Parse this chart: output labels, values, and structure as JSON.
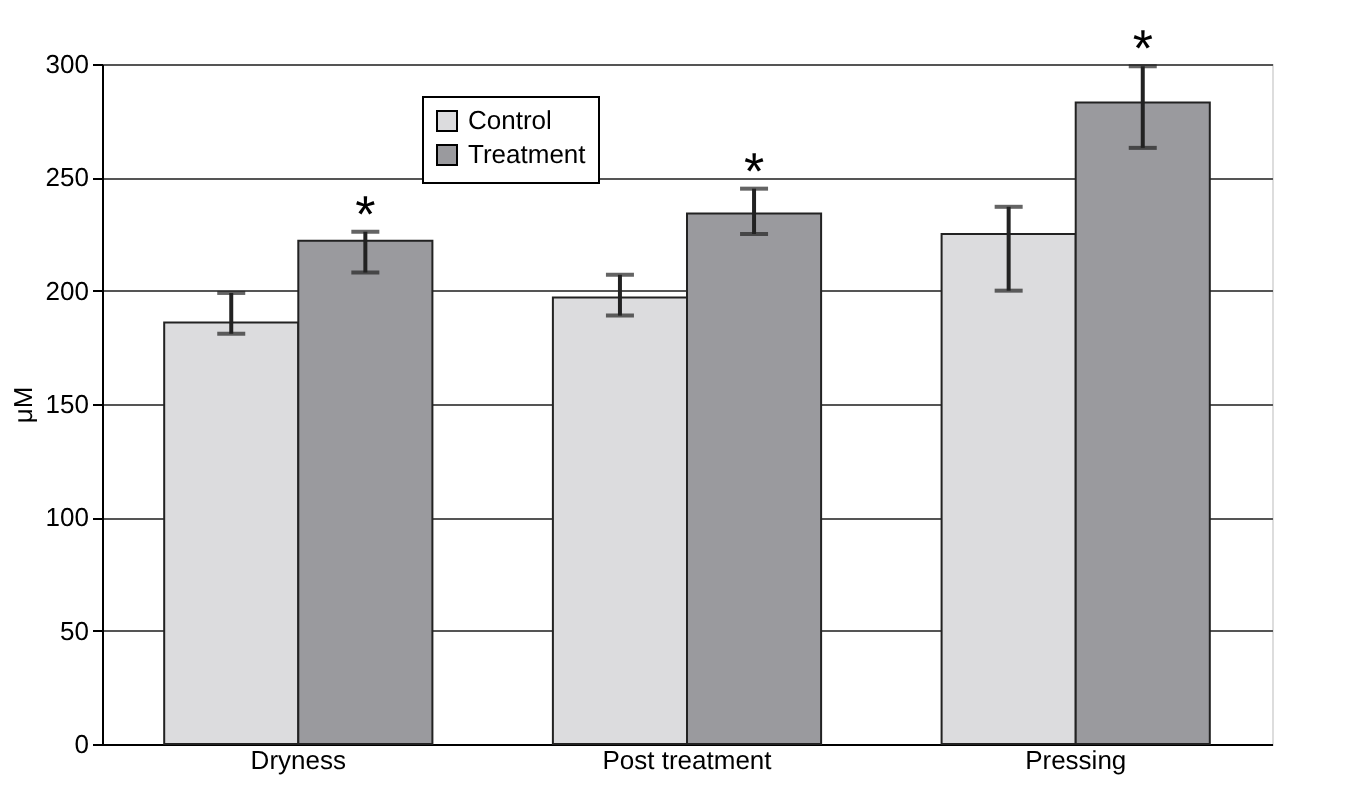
{
  "chart_data": {
    "type": "bar",
    "ylabel": "μM",
    "categories": [
      "Dryness",
      "Post treatment",
      "Pressing"
    ],
    "series": [
      {
        "name": "Control",
        "color": "#dcdcde",
        "values": [
          186,
          197,
          225
        ],
        "errors": [
          [
            181,
            199
          ],
          [
            189,
            207
          ],
          [
            200,
            237
          ]
        ]
      },
      {
        "name": "Treatment",
        "color": "#9a9a9e",
        "values": [
          222,
          234,
          283
        ],
        "errors": [
          [
            208,
            226
          ],
          [
            225,
            245
          ],
          [
            263,
            299
          ]
        ]
      }
    ],
    "ylim": [
      0,
      300
    ],
    "yticks": [
      0,
      50,
      100,
      150,
      200,
      250,
      300
    ],
    "grid": "y",
    "legend": "top left",
    "annotations": [
      "*",
      "*",
      "*"
    ]
  }
}
